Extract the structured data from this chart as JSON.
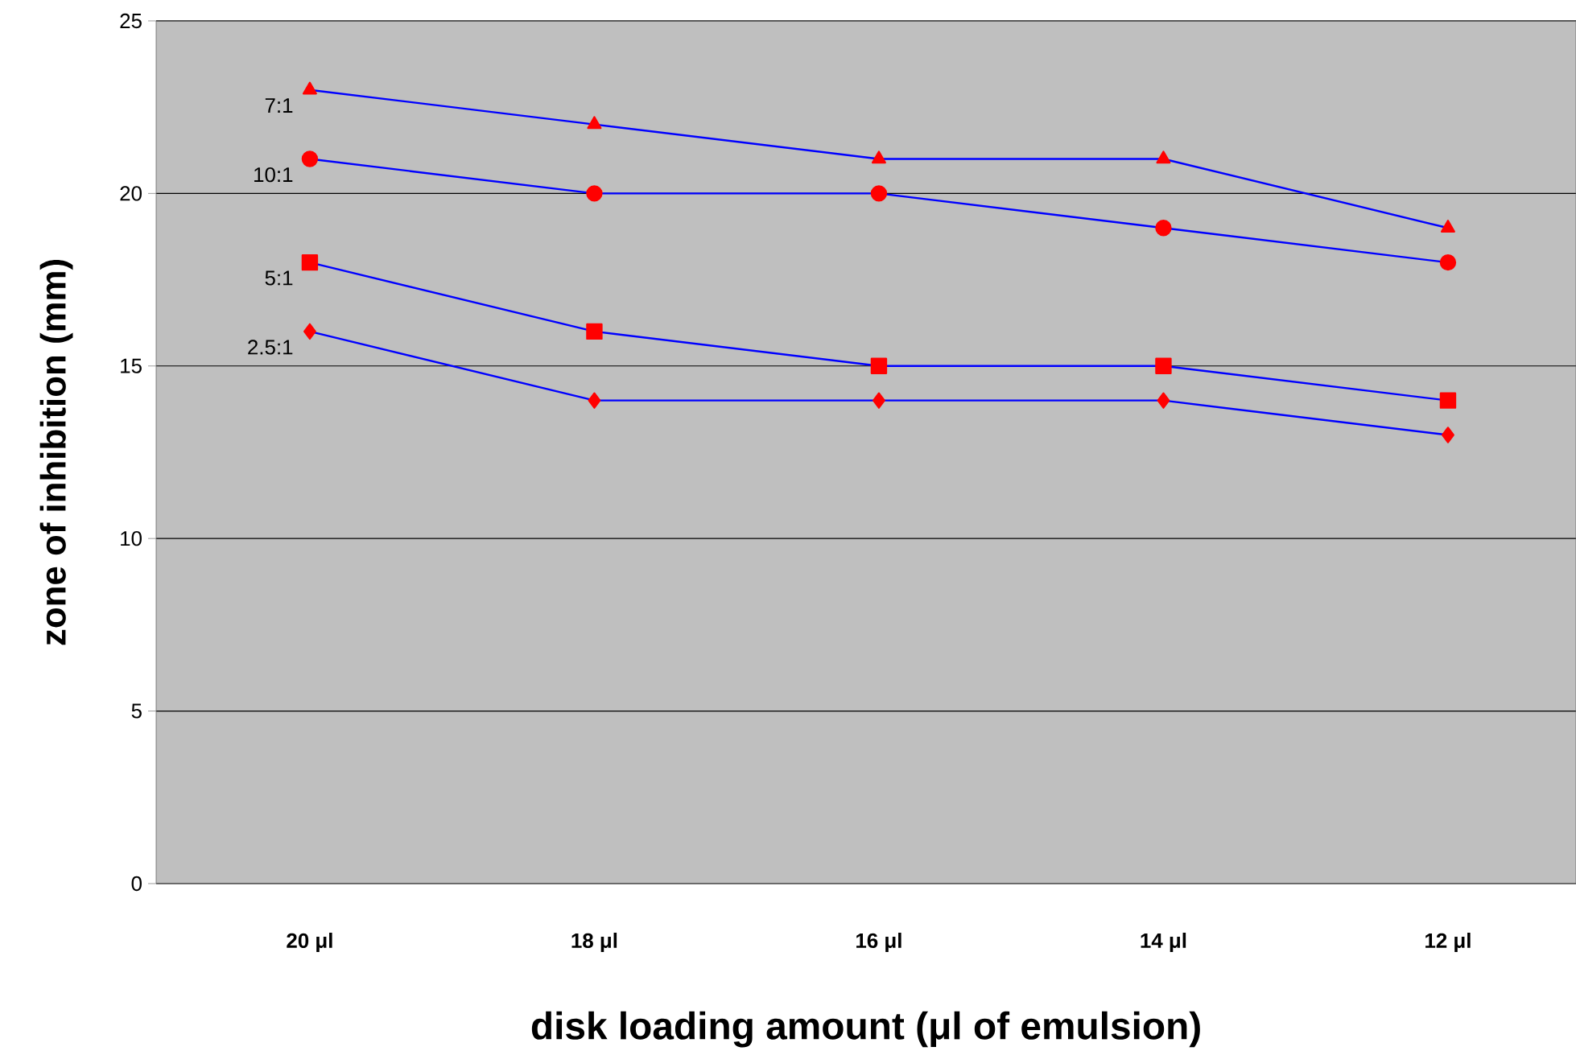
{
  "chart_data": {
    "type": "line",
    "xlabel": "disk loading amount (μl of emulsion)",
    "ylabel": "zone of inhibition (mm)",
    "categories": [
      "20 μl",
      "18 μl",
      "16 μl",
      "14 μl",
      "12 μl"
    ],
    "ylim": [
      0,
      25
    ],
    "yticks": [
      0,
      5,
      10,
      15,
      20,
      25
    ],
    "grid": "y",
    "series": [
      {
        "name": "7:1",
        "color": "#0000ff",
        "marker": "triangle",
        "values": [
          23,
          22,
          21,
          21,
          19
        ]
      },
      {
        "name": "10:1",
        "color": "#0000ff",
        "marker": "circle",
        "values": [
          21,
          20,
          20,
          19,
          18
        ]
      },
      {
        "name": "5:1",
        "color": "#0000ff",
        "marker": "square",
        "values": [
          18,
          16,
          15,
          15,
          14
        ]
      },
      {
        "name": "2.5:1",
        "color": "#0000ff",
        "marker": "diamond",
        "values": [
          16,
          14,
          14,
          14,
          13
        ]
      }
    ]
  }
}
